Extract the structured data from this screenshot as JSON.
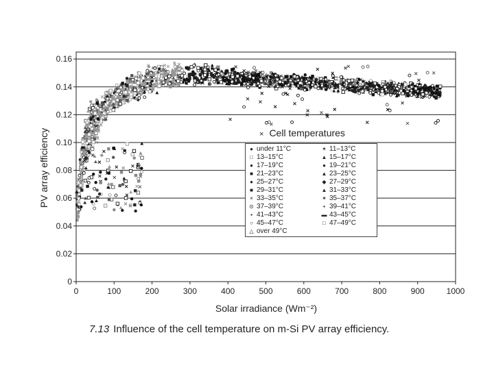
{
  "chart_data": {
    "type": "scatter",
    "xlabel": "Solar irradiance (Wm⁻²)",
    "ylabel": "PV array efficiency",
    "xlim": [
      0,
      1000
    ],
    "ylim": [
      0,
      0.165
    ],
    "x_ticks": [
      "0",
      "100",
      "200",
      "300",
      "400",
      "500",
      "600",
      "700",
      "800",
      "900",
      "1000"
    ],
    "y_ticks": [
      "0",
      "0.02",
      "0.04",
      "0.06",
      "0.08",
      "0.10",
      "0.12",
      "0.14",
      "0.16"
    ],
    "grid": "horizontal",
    "legend_title": "Cell temperatures",
    "legend_title_symbol": "×",
    "legend": [
      {
        "label": "under 11°C",
        "symbol": "●"
      },
      {
        "label": "11–13°C",
        "symbol": "✶"
      },
      {
        "label": "13–15°C",
        "symbol": "□"
      },
      {
        "label": "15–17°C",
        "symbol": "▲"
      },
      {
        "label": "17–19°C",
        "symbol": "●"
      },
      {
        "label": "19–21°C",
        "symbol": "●"
      },
      {
        "label": "21–23°C",
        "symbol": "■"
      },
      {
        "label": "23–25°C",
        "symbol": "▲"
      },
      {
        "label": "25–27°C",
        "symbol": "●"
      },
      {
        "label": "27–29°C",
        "symbol": "◆"
      },
      {
        "label": "29–31°C",
        "symbol": "■"
      },
      {
        "label": "31–33°C",
        "symbol": "▲"
      },
      {
        "label": "33–35°C",
        "symbol": "×"
      },
      {
        "label": "35–37°C",
        "symbol": "✶"
      },
      {
        "label": "37–39°C",
        "symbol": "⊙"
      },
      {
        "label": "39–41°C",
        "symbol": "+"
      },
      {
        "label": "41–43°C",
        "symbol": "▪"
      },
      {
        "label": "43–45°C",
        "symbol": "▬"
      },
      {
        "label": "45–47°C",
        "symbol": "○"
      },
      {
        "label": "47–49°C",
        "symbol": "□"
      },
      {
        "label": "over 49°C",
        "symbol": "△"
      }
    ],
    "trend_description_points": {
      "x": [
        5,
        15,
        30,
        50,
        80,
        120,
        160,
        200,
        250,
        300,
        350,
        400,
        450,
        500,
        550,
        600,
        650,
        700,
        750,
        800,
        850,
        900,
        950
      ],
      "y_low_temp": [
        0.06,
        0.09,
        0.11,
        0.125,
        0.135,
        0.142,
        0.148,
        0.152,
        0.155,
        0.156,
        0.155,
        0.152,
        0.15,
        0.149,
        0.148,
        0.147,
        0.146,
        0.145,
        0.144,
        0.143,
        0.142,
        0.141,
        0.14
      ],
      "y_high_temp": [
        0.05,
        0.08,
        0.1,
        0.11,
        0.12,
        0.128,
        0.133,
        0.137,
        0.14,
        0.142,
        0.143,
        0.143,
        0.143,
        0.142,
        0.141,
        0.14,
        0.139,
        0.138,
        0.137,
        0.136,
        0.135,
        0.134,
        0.133
      ]
    },
    "caption_number": "7.13",
    "caption_text": "Influence of the cell temperature on m-Si PV array efficiency."
  }
}
